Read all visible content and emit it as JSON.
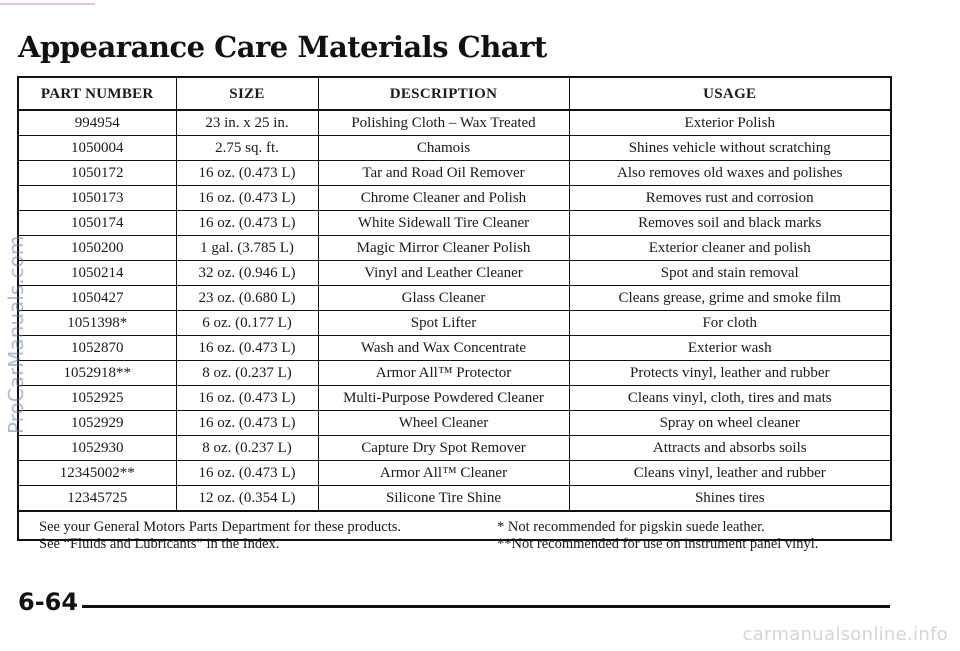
{
  "page": {
    "title": "Appearance Care Materials Chart",
    "page_number": "6-64",
    "side_watermark": "ProCarManuals.com",
    "footer_watermark": "carmanualsonline.info"
  },
  "table": {
    "headers": [
      "PART NUMBER",
      "SIZE",
      "DESCRIPTION",
      "USAGE"
    ],
    "rows": [
      [
        "994954",
        "23 in. x 25 in.",
        "Polishing Cloth – Wax Treated",
        "Exterior Polish"
      ],
      [
        "1050004",
        "2.75 sq. ft.",
        "Chamois",
        "Shines vehicle without scratching"
      ],
      [
        "1050172",
        "16 oz. (0.473 L)",
        "Tar and Road Oil Remover",
        "Also removes old waxes and polishes"
      ],
      [
        "1050173",
        "16 oz. (0.473 L)",
        "Chrome Cleaner and Polish",
        "Removes rust and corrosion"
      ],
      [
        "1050174",
        "16 oz. (0.473 L)",
        "White Sidewall Tire Cleaner",
        "Removes soil and black marks"
      ],
      [
        "1050200",
        "1 gal. (3.785 L)",
        "Magic Mirror Cleaner Polish",
        "Exterior cleaner and polish"
      ],
      [
        "1050214",
        "32 oz. (0.946 L)",
        "Vinyl and Leather Cleaner",
        "Spot and stain removal"
      ],
      [
        "1050427",
        "23 oz. (0.680 L)",
        "Glass Cleaner",
        "Cleans grease, grime and smoke film"
      ],
      [
        "1051398*",
        "6 oz. (0.177 L)",
        "Spot Lifter",
        "For cloth"
      ],
      [
        "1052870",
        "16 oz. (0.473 L)",
        "Wash and Wax Concentrate",
        "Exterior wash"
      ],
      [
        "1052918**",
        "8 oz. (0.237 L)",
        "Armor All™ Protector",
        "Protects vinyl, leather and rubber"
      ],
      [
        "1052925",
        "16 oz. (0.473 L)",
        "Multi-Purpose Powdered Cleaner",
        "Cleans vinyl, cloth, tires and mats"
      ],
      [
        "1052929",
        "16 oz. (0.473 L)",
        "Wheel Cleaner",
        "Spray on wheel cleaner"
      ],
      [
        "1052930",
        "8 oz. (0.237 L)",
        "Capture Dry Spot Remover",
        "Attracts and absorbs soils"
      ],
      [
        "12345002**",
        "16 oz. (0.473 L)",
        "Armor All™ Cleaner",
        "Cleans vinyl, leather and rubber"
      ],
      [
        "12345725",
        "12 oz. (0.354 L)",
        "Silicone Tire Shine",
        "Shines tires"
      ]
    ]
  },
  "footnotes": {
    "left": [
      "See your General Motors Parts Department for these products.",
      "See “Fluids and Lubricants” in the Index."
    ],
    "right": [
      "*  Not recommended for pigskin suede leather.",
      "**Not recommended for use on instrument panel vinyl."
    ]
  }
}
